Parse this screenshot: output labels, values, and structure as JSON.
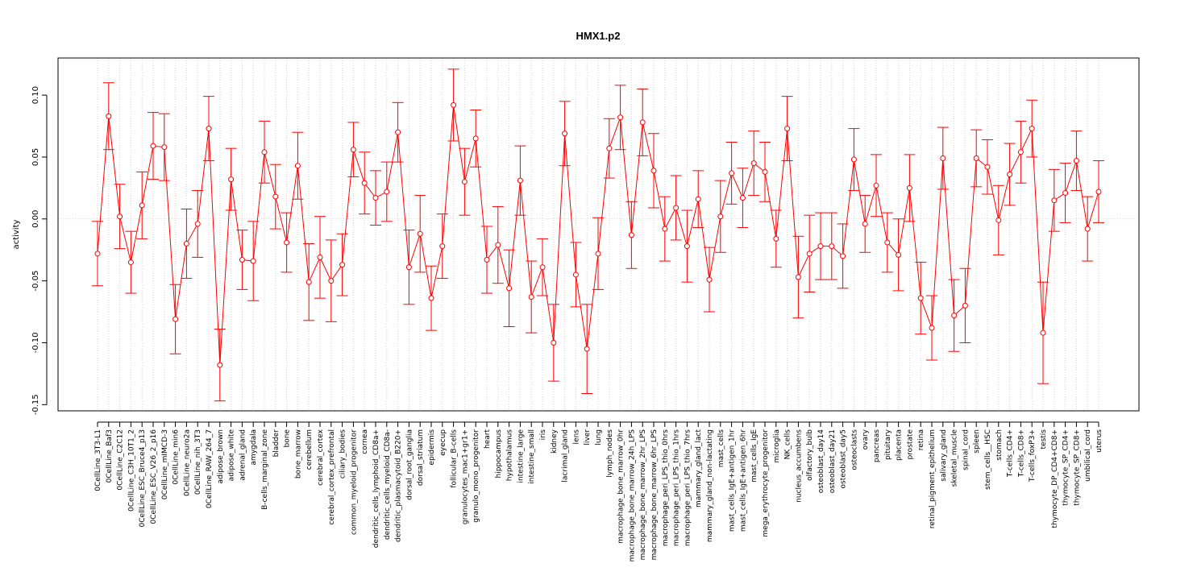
{
  "chart_data": {
    "type": "line",
    "title": "HMX1.p2",
    "xlabel": "",
    "ylabel": "activity",
    "ylim": [
      -0.155,
      0.13
    ],
    "yticks": [
      -0.15,
      -0.1,
      -0.05,
      0.0,
      0.05,
      0.1
    ],
    "ytick_labels": [
      "-0.15",
      "-0.10",
      "-0.05",
      "0.00",
      "0.05",
      "0.10"
    ],
    "series_color": "#ff0000",
    "grid_color": "#d3d3d3",
    "categories": [
      "0CellLine_3T3-L1",
      "0CellLine_Baf3",
      "0CellLine_C2C12",
      "0CellLine_C3H_10T1_2",
      "0CellLine_ESC_Bruce4_p13",
      "0CellLine_ESC_V26_2_p16",
      "0CellLine_mIMCD-3",
      "0CellLine_min6",
      "0CellLine_neuro2a",
      "0CellLine_nih_3T3",
      "0CellLine_RAW_264_7",
      "adipose_brown",
      "adipose_white",
      "adrenal_gland",
      "amygdala",
      "B-cells_marginal_zone",
      "bladder",
      "bone",
      "bone_marrow",
      "cerebellum",
      "cerebral_cortex",
      "cerebral_cortex_prefrontal",
      "ciliary_bodies",
      "common_myeloid_progenitor",
      "cornea",
      "dendritic_cells_lymphoid_CD8a+",
      "dendritic_cells_myeloid_CD8a-",
      "dendritic_plasmacytoid_B220+",
      "dorsal_root_ganglia",
      "dorsal_striatum",
      "epidermis",
      "eyecup",
      "follicular_B-cells",
      "granulocytes_mac1+gr1+",
      "granulo_mono_progenitor",
      "heart",
      "hippocampus",
      "hypothalamus",
      "intestine_large",
      "intestine_small",
      "iris",
      "kidney",
      "lacrimal_gland",
      "lens",
      "liver",
      "lung",
      "lymph_nodes",
      "macrophage_bone_marrow_0hr",
      "macrophage_bone_marrow_24h_LPS",
      "macrophage_bone_marrow_2hr_LPS",
      "macrophage_bone_marrow_6hr_LPS",
      "macrophage_peri_LPS_thio_0hrs",
      "macrophage_peri_LPS_thio_1hrs",
      "macrophage_peri_LPS_thio_7hrs",
      "mammary_gland_lact",
      "mammary_gland_non-lactating",
      "mast_cells",
      "mast_cells_IgE+antigen_1hr",
      "mast_cells_IgE+antigen_6hr",
      "mast_cells_IgE",
      "mega_erythrocyte_progenitor",
      "microglia",
      "NK_cells",
      "nucleus_accumbens",
      "olfactory_bulb",
      "osteoblast_day14",
      "osteoblast_day21",
      "osteoblast_day5",
      "osteoclasts",
      "ovary",
      "pancreas",
      "pituitary",
      "placenta",
      "prostate",
      "retina",
      "retinal_pigment_epithelium",
      "salivary_gland",
      "skeletal_muscle",
      "spinal_cord",
      "spleen",
      "stem_cells__HSC",
      "stomach",
      "T-cells_CD4+",
      "T-cells_CD8+",
      "T-cells_foxP3+",
      "testis",
      "thymocyte_DP_CD4+CD8+",
      "thymocyte_SP_CD4+",
      "thymocyte_SP_CD8+",
      "umbilical_cord",
      "uterus"
    ],
    "values": [
      -0.028,
      0.083,
      0.002,
      -0.035,
      0.011,
      0.059,
      0.058,
      -0.081,
      -0.02,
      -0.004,
      0.073,
      -0.118,
      0.032,
      -0.033,
      -0.034,
      0.054,
      0.018,
      -0.019,
      0.043,
      -0.051,
      -0.031,
      -0.05,
      -0.037,
      0.056,
      0.029,
      0.017,
      0.022,
      0.07,
      -0.039,
      -0.012,
      -0.064,
      -0.022,
      0.092,
      0.03,
      0.065,
      -0.033,
      -0.021,
      -0.056,
      0.031,
      -0.063,
      -0.039,
      -0.1,
      0.069,
      -0.045,
      -0.105,
      -0.028,
      0.057,
      0.082,
      -0.013,
      0.078,
      0.039,
      -0.008,
      0.009,
      -0.022,
      0.016,
      -0.049,
      0.002,
      0.037,
      0.017,
      0.045,
      0.038,
      -0.016,
      0.073,
      -0.047,
      -0.028,
      -0.022,
      -0.022,
      -0.03,
      0.048,
      -0.004,
      0.027,
      -0.019,
      -0.029,
      0.025,
      -0.064,
      -0.088,
      0.049,
      -0.078,
      -0.07,
      0.049,
      0.042,
      -0.001,
      0.036,
      0.054,
      0.073,
      -0.092,
      0.015,
      0.021,
      0.047,
      -0.008,
      0.022
    ],
    "errors": [
      0.026,
      0.027,
      0.026,
      0.025,
      0.027,
      0.027,
      0.027,
      0.028,
      0.028,
      0.027,
      0.026,
      0.029,
      0.025,
      0.024,
      0.032,
      0.025,
      0.026,
      0.024,
      0.027,
      0.031,
      0.033,
      0.033,
      0.025,
      0.022,
      0.025,
      0.022,
      0.024,
      0.024,
      0.03,
      0.031,
      0.026,
      0.026,
      0.029,
      0.027,
      0.023,
      0.027,
      0.031,
      0.031,
      0.028,
      0.029,
      0.023,
      0.031,
      0.026,
      0.026,
      0.036,
      0.029,
      0.024,
      0.026,
      0.027,
      0.027,
      0.03,
      0.026,
      0.026,
      0.029,
      0.023,
      0.026,
      0.029,
      0.025,
      0.024,
      0.026,
      0.024,
      0.023,
      0.026,
      0.033,
      0.031,
      0.027,
      0.027,
      0.026,
      0.025,
      0.023,
      0.025,
      0.024,
      0.029,
      0.027,
      0.029,
      0.026,
      0.025,
      0.029,
      0.03,
      0.023,
      0.022,
      0.028,
      0.025,
      0.025,
      0.023,
      0.041,
      0.025,
      0.024,
      0.024,
      0.026,
      0.025
    ]
  }
}
